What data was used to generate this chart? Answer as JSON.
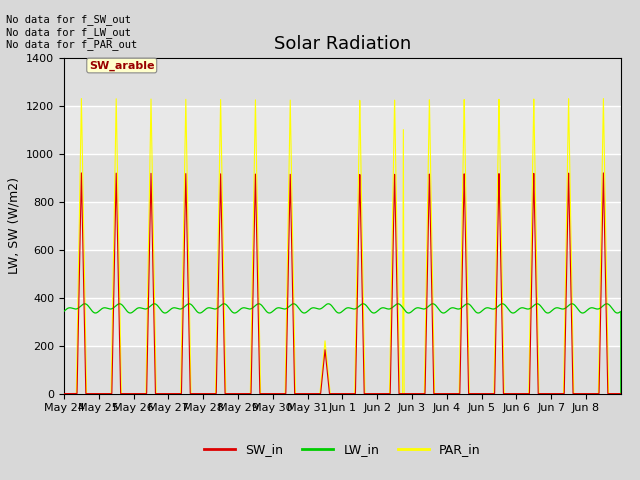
{
  "title": "Solar Radiation",
  "ylabel": "LW, SW (W/m2)",
  "ylim": [
    0,
    1400
  ],
  "yticks": [
    0,
    200,
    400,
    600,
    800,
    1000,
    1200,
    1400
  ],
  "fig_bg_color": "#d8d8d8",
  "plot_bg_color": "#e8e8e8",
  "sw_in_color": "#dd0000",
  "lw_in_color": "#00cc00",
  "par_in_color": "#ffff00",
  "annotation_text": "No data for f_SW_out\nNo data for f_LW_out\nNo data for f_PAR_out",
  "legend_box_text": "SW_arable",
  "legend_box_color": "#ffffcc",
  "legend_box_text_color": "#990000",
  "n_days": 16,
  "sw_peak": 920,
  "lw_base": 355,
  "lw_amplitude": 30,
  "par_peak": 1230,
  "title_fontsize": 13,
  "label_fontsize": 9,
  "tick_fontsize": 8,
  "date_labels": [
    "May 24",
    "May 25",
    "May 26",
    "May 27",
    "May 28",
    "May 29",
    "May 30",
    "May 31",
    "Jun 1",
    "Jun 2",
    "Jun 3",
    "Jun 4",
    "Jun 5",
    "Jun 6",
    "Jun 7",
    "Jun 8"
  ]
}
